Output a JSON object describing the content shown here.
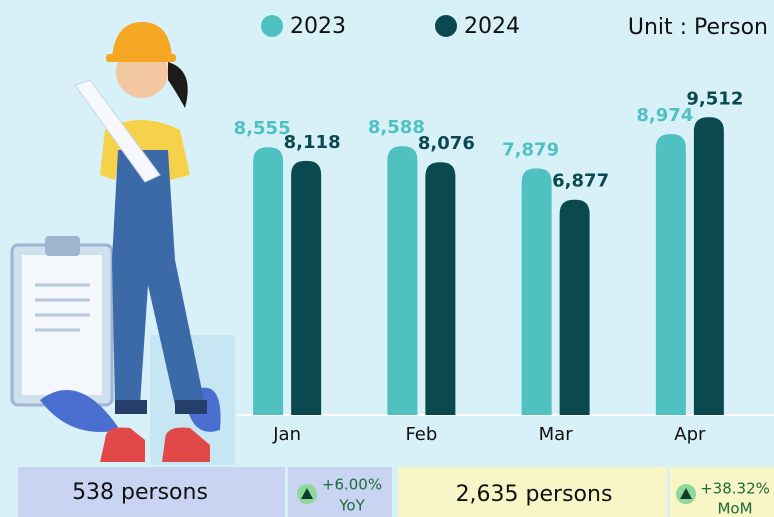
{
  "chart_data": {
    "type": "bar",
    "unit_label": "Unit : Person",
    "categories": [
      "Jan",
      "Feb",
      "Mar",
      "Apr"
    ],
    "series": [
      {
        "name": "2023",
        "color": "#4fc1c1",
        "values": [
          8555,
          8588,
          7879,
          8974
        ],
        "value_labels": [
          "8,555",
          "8,588",
          "7,879",
          "8,974"
        ]
      },
      {
        "name": "2024",
        "color": "#0a4a4f",
        "values": [
          8118,
          8076,
          6877,
          9512
        ],
        "value_labels": [
          "8,118",
          "8,076",
          "6,877",
          "9,512"
        ]
      }
    ],
    "ylim": [
      0,
      10000
    ]
  },
  "summary": {
    "yoy": {
      "amount": "538 persons",
      "change": "+6.00%",
      "label": "YoY"
    },
    "mom": {
      "amount": "2,635 persons",
      "change": "+38.32%",
      "label": "MoM"
    }
  }
}
